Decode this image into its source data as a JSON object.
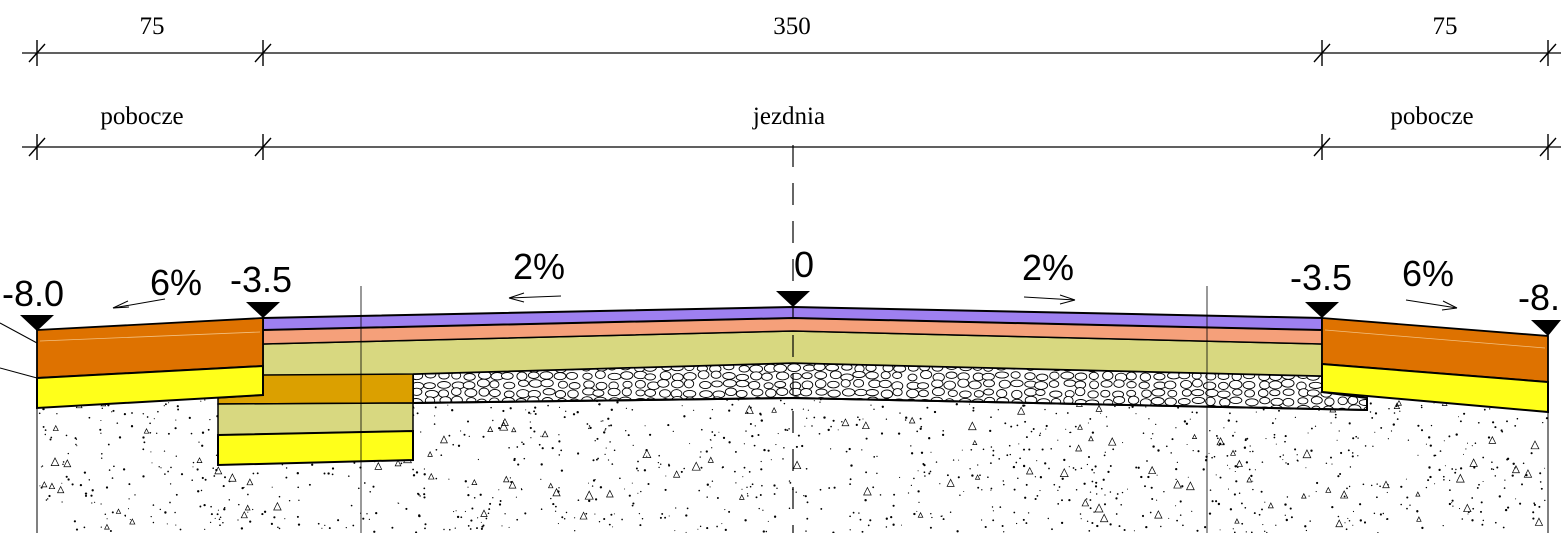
{
  "dimensions": {
    "widths": [
      {
        "value": "75"
      },
      {
        "value": "350"
      },
      {
        "value": "75"
      }
    ],
    "zones": [
      {
        "label": "pobocze"
      },
      {
        "label": "jezdnia"
      },
      {
        "label": "pobocze"
      }
    ]
  },
  "levels": [
    {
      "label": "-8.0"
    },
    {
      "label": "-3.5"
    },
    {
      "label": "0"
    },
    {
      "label": "-3.5"
    },
    {
      "label": "-8."
    }
  ],
  "slopes": [
    {
      "label": "6%",
      "direction": "left"
    },
    {
      "label": "2%",
      "direction": "left"
    },
    {
      "label": "2%",
      "direction": "right"
    },
    {
      "label": "6%",
      "direction": "right"
    }
  ],
  "colors": {
    "wearing_course": "#9e80f0",
    "binder_course": "#f5a07a",
    "base_course": "#d8d880",
    "shoulder_top": "#de7200",
    "shoulder_base": "#ffff1a",
    "widening_top": "#dba000",
    "subgrade": "#ffffff",
    "outline": "#000000"
  }
}
